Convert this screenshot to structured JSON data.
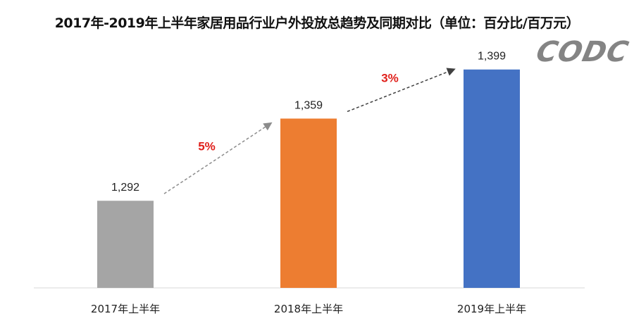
{
  "chart_data": {
    "type": "bar",
    "title": "2017年-2019年上半年家居用品行业户外投放总趋势及同期对比（单位：百分比/百万元）",
    "categories": [
      "2017年上半年",
      "2018年上半年",
      "2019年上半年"
    ],
    "values": [
      1292,
      1359,
      1399
    ],
    "data_labels": [
      "1,292",
      "1,359",
      "1,399"
    ],
    "colors": [
      "#a5a5a5",
      "#ed7d31",
      "#4472c4"
    ],
    "growth_annotations": [
      {
        "from": "2017年上半年",
        "to": "2018年上半年",
        "label": "5%",
        "arrow_color": "#8c8c8c"
      },
      {
        "from": "2018年上半年",
        "to": "2019年上半年",
        "label": "3%",
        "arrow_color": "#404040"
      }
    ],
    "annotation_color": "#e0201b",
    "ylim": [
      1221,
      1400
    ],
    "grid": false,
    "legend": "none"
  },
  "watermark": "CODC"
}
